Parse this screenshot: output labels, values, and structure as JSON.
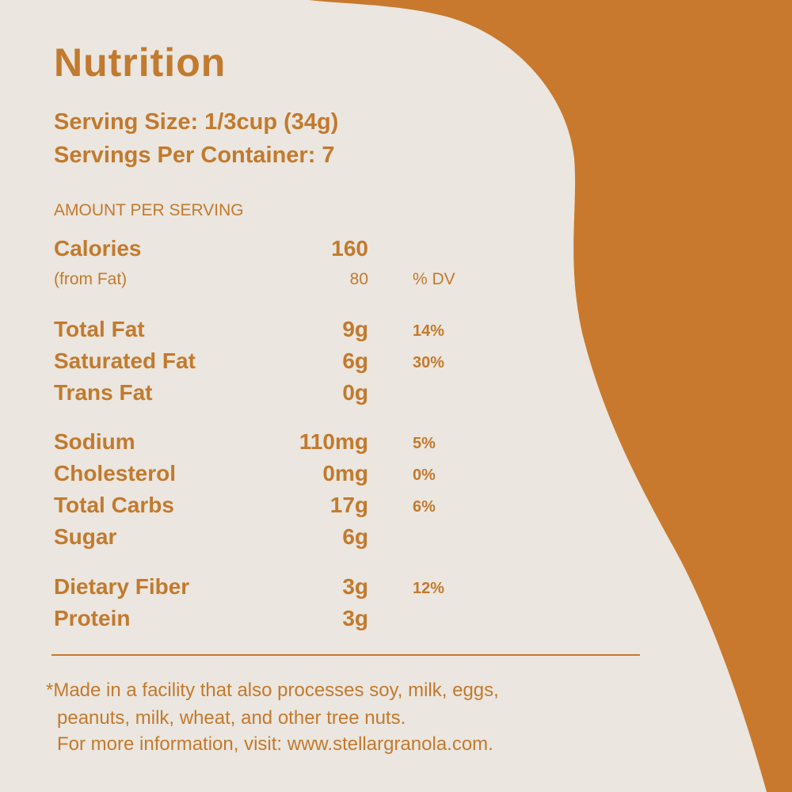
{
  "title": "Nutrition",
  "serving": [
    "Serving Size: 1/3cup (34g)",
    "Servings Per Container: 7"
  ],
  "amount_header": "AMOUNT PER SERVING",
  "calories": {
    "label": "Calories",
    "amount": "160"
  },
  "from_fat": {
    "label": "(from Fat)",
    "amount": "80",
    "dv": "% DV"
  },
  "groups": [
    [
      {
        "label": "Total Fat",
        "amount": "9g",
        "dv": "14%"
      },
      {
        "label": "Saturated Fat",
        "amount": "6g",
        "dv": "30%"
      },
      {
        "label": "Trans Fat",
        "amount": "0g"
      }
    ],
    [
      {
        "label": "Sodium",
        "amount": "110mg",
        "dv": "5%"
      },
      {
        "label": "Cholesterol",
        "amount": "0mg",
        "dv": "0%"
      },
      {
        "label": "Total Carbs",
        "amount": "17g",
        "dv": "6%"
      },
      {
        "label": "Sugar",
        "amount": "6g"
      }
    ],
    [
      {
        "label": "Dietary Fiber",
        "amount": "3g",
        "dv": "12%"
      },
      {
        "label": "Protein",
        "amount": "3g"
      }
    ]
  ],
  "footnote": [
    "*Made in a facility that also processes soy, milk, eggs,",
    "peanuts, milk, wheat, and other tree nuts.",
    "For more information, visit: www.stellargranola.com."
  ]
}
